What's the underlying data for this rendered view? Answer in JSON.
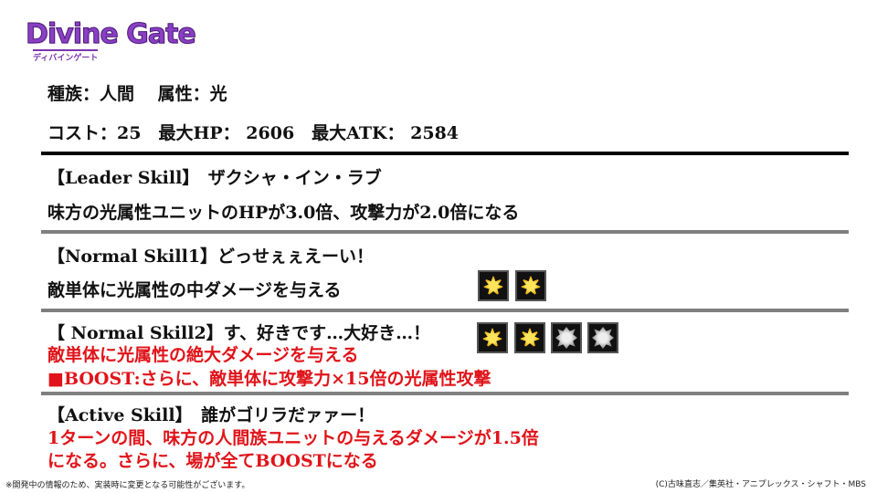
{
  "logo": {
    "title": "Divine Gate",
    "subtitle": "ディバインゲート"
  },
  "info": {
    "race": "種族：人間　 属性：光",
    "stats": "コスト：25　最大HP： 2606　最大ATK： 2584"
  },
  "leader": {
    "heading": "【Leader Skill】　ザクシャ・イン・ラブ",
    "desc": "味方の光属性ユニットのHPが3.0倍、攻撃力が2.0倍になる"
  },
  "normal1": {
    "heading": "【Normal Skill1】どっせぇぇえーい！",
    "desc": "敵単体に光属性の中ダメージを与える",
    "icons": [
      "light-element-icon",
      "light-element-icon"
    ]
  },
  "normal2": {
    "heading": "【 Normal Skill2】す、好きです…大好き…！",
    "desc": "敵単体に光属性の絶大ダメージを与える",
    "boost": "■BOOST:さらに、敵単体に攻撃力×15倍の光属性攻撃",
    "icons": [
      "light-element-icon",
      "light-element-icon",
      "boost-element-icon",
      "boost-element-icon"
    ]
  },
  "active": {
    "heading": "【Active Skill】　誰がゴリラだァァー！",
    "desc1": "1ターンの間、味方の人間族ユニットの与えるダメージが1.5倍",
    "desc2": "になる。さらに、場が全てBOOSTになる"
  },
  "footer": {
    "note": "※開発中の情報のため、実装時に変更となる可能性がございます。",
    "copyright": "(C)古味直志／集英社・アニプレックス・シャフト・MBS"
  },
  "colors": {
    "red": "#e0141a",
    "logo_purple": "#8a3fc4"
  }
}
